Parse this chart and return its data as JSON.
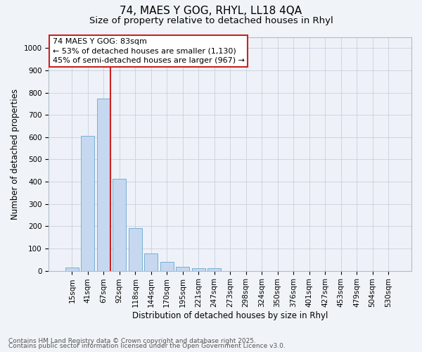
{
  "title1": "74, MAES Y GOG, RHYL, LL18 4QA",
  "title2": "Size of property relative to detached houses in Rhyl",
  "xlabel": "Distribution of detached houses by size in Rhyl",
  "ylabel": "Number of detached properties",
  "bar_labels": [
    "15sqm",
    "41sqm",
    "67sqm",
    "92sqm",
    "118sqm",
    "144sqm",
    "170sqm",
    "195sqm",
    "221sqm",
    "247sqm",
    "273sqm",
    "298sqm",
    "324sqm",
    "350sqm",
    "376sqm",
    "401sqm",
    "427sqm",
    "453sqm",
    "479sqm",
    "504sqm",
    "530sqm"
  ],
  "bar_values": [
    15,
    607,
    773,
    413,
    193,
    78,
    40,
    18,
    10,
    10,
    0,
    0,
    0,
    0,
    0,
    0,
    0,
    0,
    0,
    0,
    0
  ],
  "bar_color": "#c5d8f0",
  "bar_edge_color": "#7aafd4",
  "property_label": "74 MAES Y GOG: 83sqm",
  "annotation_line1": "← 53% of detached houses are smaller (1,130)",
  "annotation_line2": "45% of semi-detached houses are larger (967) →",
  "vline_color": "#cc2222",
  "annotation_box_edgecolor": "#cc2222",
  "ylim": [
    0,
    1050
  ],
  "yticks": [
    0,
    100,
    200,
    300,
    400,
    500,
    600,
    700,
    800,
    900,
    1000
  ],
  "background_color": "#f0f4f8",
  "plot_bg_color": "#eef2f8",
  "footer1": "Contains HM Land Registry data © Crown copyright and database right 2025.",
  "footer2": "Contains public sector information licensed under the Open Government Licence v3.0.",
  "grid_color": "#c8d0dc",
  "title_fontsize": 11,
  "subtitle_fontsize": 9.5,
  "annotation_fontsize": 8,
  "footer_fontsize": 6.5,
  "axis_label_fontsize": 8.5,
  "tick_fontsize": 7.5
}
